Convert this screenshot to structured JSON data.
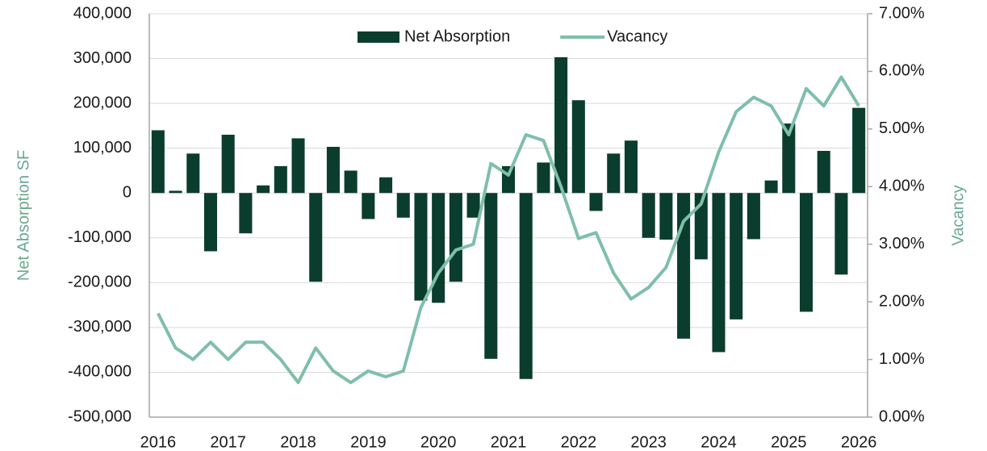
{
  "chart_data": {
    "type": "bar_line",
    "y_label": "Net Absorption SF",
    "y2_label": "Vacancy",
    "categories": [
      "2016",
      null,
      null,
      null,
      "2017",
      null,
      null,
      null,
      "2018",
      null,
      null,
      null,
      "2019",
      null,
      null,
      null,
      "2020",
      null,
      null,
      null,
      "2021",
      null,
      null,
      null,
      "2022",
      null,
      null,
      null,
      "2023",
      null,
      null,
      null,
      "2024",
      null,
      null,
      null,
      "2025",
      null,
      null,
      null,
      "2026"
    ],
    "series": [
      {
        "name": "Net Absorption",
        "type": "bar",
        "color": "#0b3d2e",
        "axis": "y",
        "values": [
          140000,
          5000,
          88000,
          -130000,
          130000,
          -90000,
          17000,
          60000,
          122000,
          -198000,
          103000,
          50000,
          -58000,
          35000,
          -55000,
          -240000,
          -245000,
          -198000,
          -55000,
          -370000,
          60000,
          -415000,
          68000,
          303000,
          207000,
          -40000,
          88000,
          117000,
          -100000,
          -104000,
          -325000,
          -148000,
          -355000,
          -282000,
          -103000,
          28000,
          155000,
          -265000,
          94000,
          -182000,
          190000
        ]
      },
      {
        "name": "Vacancy",
        "type": "line",
        "color": "#7fbfa8",
        "axis": "y2",
        "values": [
          1.8,
          1.2,
          1.0,
          1.3,
          1.0,
          1.3,
          1.3,
          1.0,
          0.6,
          1.2,
          0.8,
          0.6,
          0.8,
          0.7,
          0.8,
          1.9,
          2.5,
          2.9,
          3.0,
          4.4,
          4.2,
          4.9,
          4.8,
          4.0,
          3.1,
          3.2,
          2.5,
          2.05,
          2.25,
          2.6,
          3.4,
          3.7,
          4.6,
          5.3,
          5.55,
          5.4,
          4.9,
          5.7,
          5.4,
          5.9,
          5.4
        ]
      }
    ],
    "ylim": [
      -500000,
      400000
    ],
    "yticks": [
      {
        "value": -500000,
        "label": "-500,000"
      },
      {
        "value": -400000,
        "label": "-400,000"
      },
      {
        "value": -300000,
        "label": "-300,000"
      },
      {
        "value": -200000,
        "label": "-200,000"
      },
      {
        "value": -100000,
        "label": "-100,000"
      },
      0,
      {
        "value": 100000,
        "label": "100,000"
      },
      {
        "value": 200000,
        "label": "200,000"
      },
      {
        "value": 300000,
        "label": "300,000"
      },
      {
        "value": 400000,
        "label": "400,000"
      }
    ],
    "y2lim": [
      0,
      7
    ],
    "y2ticks": [
      {
        "value": 0,
        "label": "0.00%"
      },
      {
        "value": 1,
        "label": "1.00%"
      },
      {
        "value": 2,
        "label": "2.00%"
      },
      {
        "value": 3,
        "label": "3.00%"
      },
      {
        "value": 4,
        "label": "4.00%"
      },
      {
        "value": 5,
        "label": "5.00%"
      },
      {
        "value": 6,
        "label": "6.00%"
      },
      {
        "value": 7,
        "label": "7.00%"
      }
    ],
    "grid": true,
    "legend": "top"
  }
}
